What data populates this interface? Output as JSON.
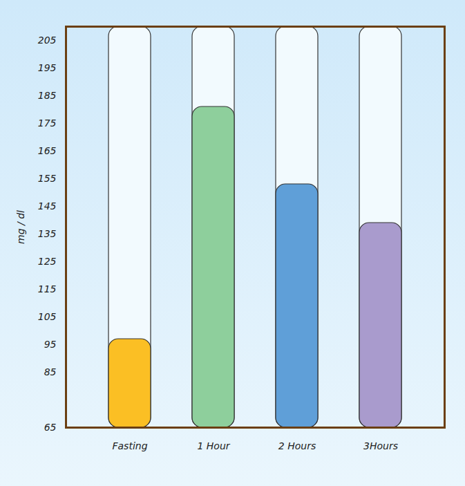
{
  "chart_data": {
    "type": "bar",
    "y_label": "mg / dl",
    "categories": [
      "Fasting",
      "1 Hour",
      "2 Hours",
      "3Hours"
    ],
    "values": [
      97,
      181,
      153,
      139
    ],
    "colors": [
      "#fbbf24",
      "#8ecf9c",
      "#5f9fd8",
      "#a99bcd"
    ],
    "ylim": [
      65,
      210
    ],
    "yticks": [
      65,
      85,
      95,
      105,
      115,
      125,
      135,
      145,
      155,
      165,
      175,
      185,
      195,
      205
    ],
    "grid": false
  }
}
